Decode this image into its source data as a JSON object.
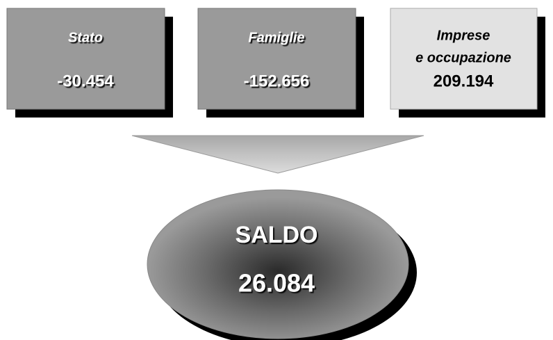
{
  "boxes": [
    {
      "label": "Stato",
      "value": "-30.454"
    },
    {
      "label": "Famiglie",
      "value": "-152.656"
    },
    {
      "label_lines": [
        "Imprese",
        "e occupazione"
      ],
      "value": "209.194"
    }
  ],
  "result": {
    "label": "SALDO",
    "value": "26.084"
  }
}
